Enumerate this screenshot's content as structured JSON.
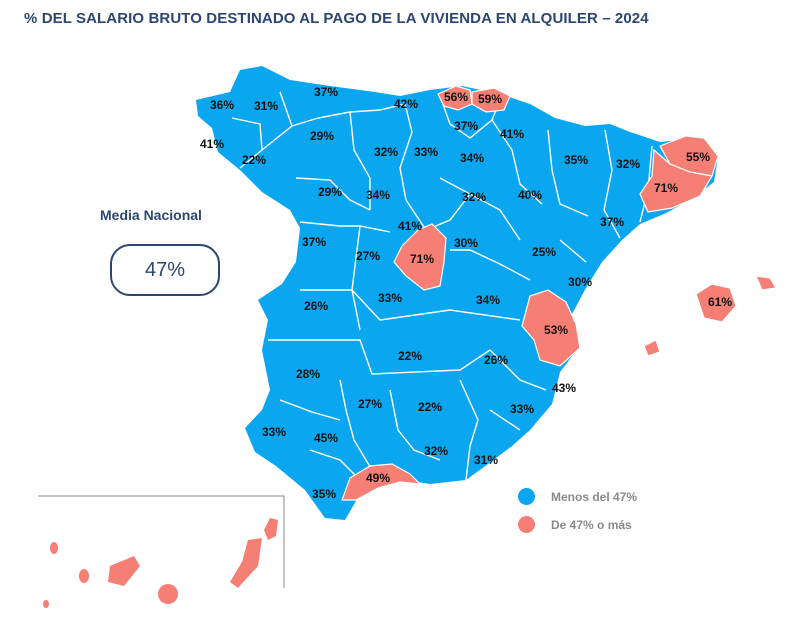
{
  "title": "% DEL SALARIO BRUTO DESTINADO AL PAGO DE LA VIVIENDA EN ALQUILER – 2024",
  "media": {
    "label": "Media Nacional",
    "value": "47%"
  },
  "legend": [
    {
      "text": "Menos del 47%",
      "color": "#0aa6ef"
    },
    {
      "text": "De 47% o más",
      "color": "#f57f75"
    }
  ],
  "colors": {
    "below": "#0aa6ef",
    "above": "#f57f75",
    "borders": "#ffffff",
    "title": "#2b4670"
  },
  "regions": [
    {
      "name": "a-coruna",
      "value": "36%",
      "high": false
    },
    {
      "name": "lugo",
      "value": "31%",
      "high": false
    },
    {
      "name": "asturias",
      "value": "37%",
      "high": false
    },
    {
      "name": "cantabria",
      "value": "42%",
      "high": false
    },
    {
      "name": "bizkaia",
      "value": "56%",
      "high": true
    },
    {
      "name": "gipuzkoa",
      "value": "59%",
      "high": true
    },
    {
      "name": "pontevedra",
      "value": "41%",
      "high": false
    },
    {
      "name": "ourense",
      "value": "22%",
      "high": false
    },
    {
      "name": "leon",
      "value": "29%",
      "high": false
    },
    {
      "name": "palencia",
      "value": "32%",
      "high": false
    },
    {
      "name": "burgos",
      "value": "33%",
      "high": false
    },
    {
      "name": "alava",
      "value": "37%",
      "high": false
    },
    {
      "name": "navarra",
      "value": "41%",
      "high": false
    },
    {
      "name": "la-rioja",
      "value": "34%",
      "high": false
    },
    {
      "name": "huesca",
      "value": "35%",
      "high": false
    },
    {
      "name": "lleida",
      "value": "32%",
      "high": false
    },
    {
      "name": "girona",
      "value": "55%",
      "high": true
    },
    {
      "name": "barcelona",
      "value": "71%",
      "high": true
    },
    {
      "name": "zamora",
      "value": "29%",
      "high": false
    },
    {
      "name": "valladolid",
      "value": "34%",
      "high": false
    },
    {
      "name": "soria",
      "value": "32%",
      "high": false
    },
    {
      "name": "zaragoza",
      "value": "40%",
      "high": false
    },
    {
      "name": "tarragona",
      "value": "37%",
      "high": false
    },
    {
      "name": "segovia",
      "value": "41%",
      "high": false
    },
    {
      "name": "salamanca",
      "value": "37%",
      "high": false
    },
    {
      "name": "avila",
      "value": "27%",
      "high": false
    },
    {
      "name": "madrid",
      "value": "71%",
      "high": true
    },
    {
      "name": "guadalajara",
      "value": "30%",
      "high": false
    },
    {
      "name": "teruel",
      "value": "25%",
      "high": false
    },
    {
      "name": "castellon",
      "value": "30%",
      "high": false
    },
    {
      "name": "baleares",
      "value": "61%",
      "high": true
    },
    {
      "name": "caceres",
      "value": "26%",
      "high": false
    },
    {
      "name": "toledo",
      "value": "33%",
      "high": false
    },
    {
      "name": "cuenca",
      "value": "34%",
      "high": false
    },
    {
      "name": "valencia",
      "value": "53%",
      "high": true
    },
    {
      "name": "badajoz",
      "value": "28%",
      "high": false
    },
    {
      "name": "ciudad-real",
      "value": "22%",
      "high": false
    },
    {
      "name": "albacete",
      "value": "26%",
      "high": false
    },
    {
      "name": "alicante",
      "value": "43%",
      "high": false
    },
    {
      "name": "cordoba",
      "value": "27%",
      "high": false
    },
    {
      "name": "jaen",
      "value": "22%",
      "high": false
    },
    {
      "name": "murcia",
      "value": "33%",
      "high": false
    },
    {
      "name": "huelva",
      "value": "33%",
      "high": false
    },
    {
      "name": "sevilla",
      "value": "45%",
      "high": false
    },
    {
      "name": "granada",
      "value": "32%",
      "high": false
    },
    {
      "name": "almeria",
      "value": "31%",
      "high": false
    },
    {
      "name": "cadiz",
      "value": "35%",
      "high": false
    },
    {
      "name": "malaga",
      "value": "49%",
      "high": true
    }
  ]
}
